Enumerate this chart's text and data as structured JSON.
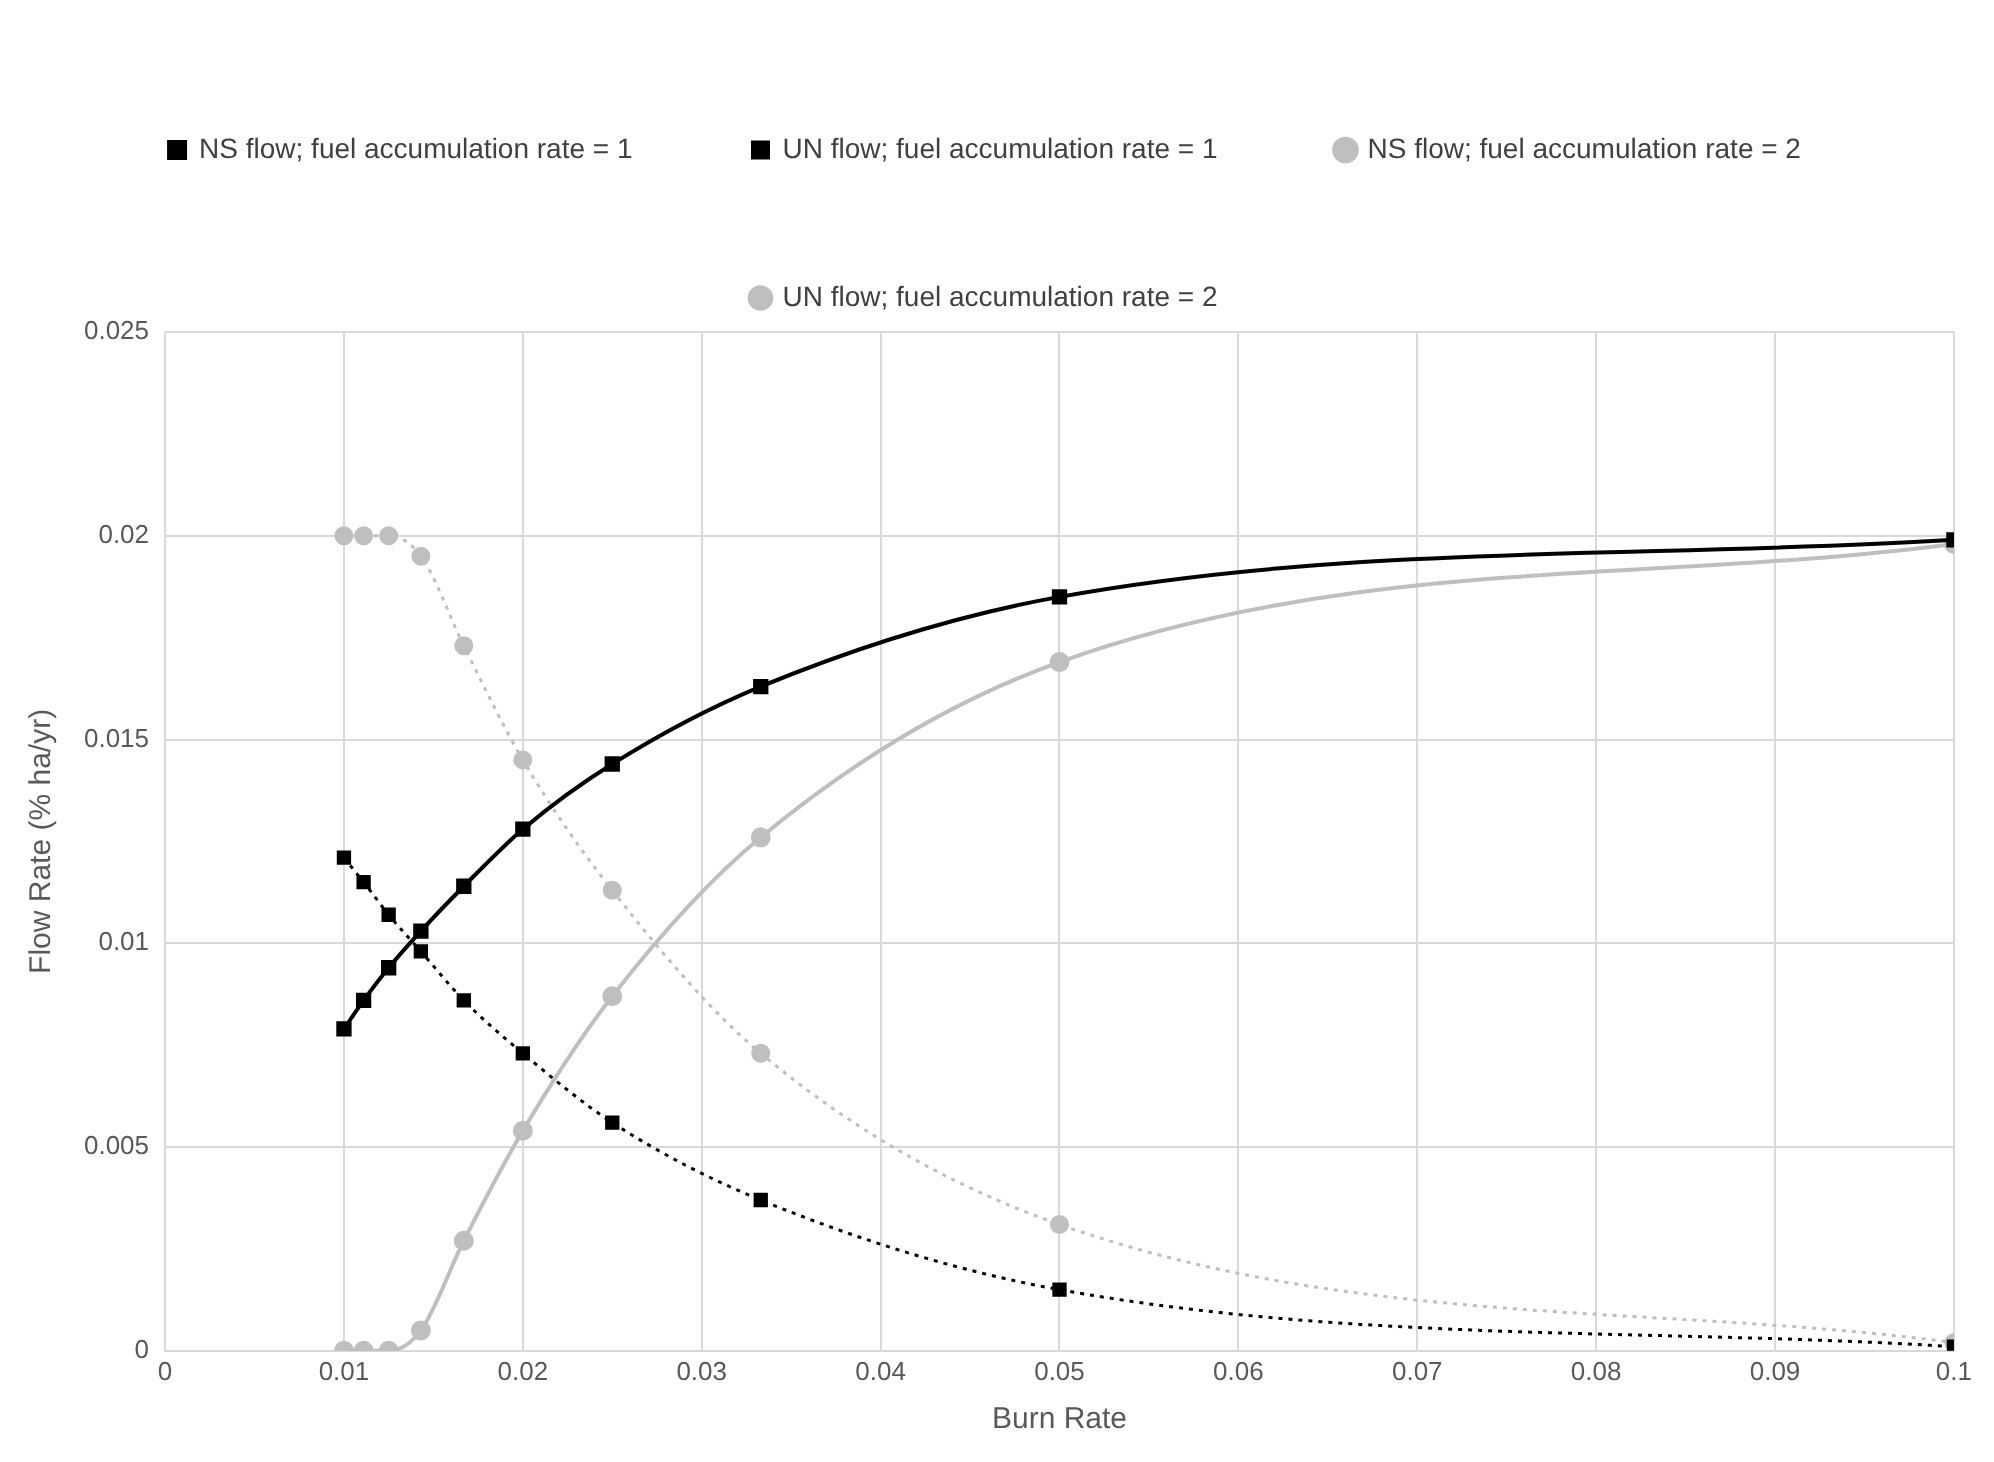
{
  "chart_data": {
    "type": "line",
    "xlabel": "Burn Rate",
    "ylabel": "Flow Rate (% ha/yr)",
    "x": [
      0.01,
      0.0111,
      0.0125,
      0.0143,
      0.0167,
      0.02,
      0.025,
      0.0333,
      0.05,
      0.1
    ],
    "xlim": [
      0,
      0.1
    ],
    "xticks": [
      0,
      0.01,
      0.02,
      0.03,
      0.04,
      0.05,
      0.06,
      0.07,
      0.08,
      0.09,
      0.1
    ],
    "ylim": [
      0,
      0.025
    ],
    "yticks": [
      0,
      0.005,
      0.01,
      0.015,
      0.02,
      0.025
    ],
    "grid": true,
    "legend": "top",
    "series": [
      {
        "name": "NS flow; fuel accumulation rate = 1",
        "color": "#000000",
        "marker": "square",
        "line_style": "solid",
        "values": [
          0.0079,
          0.0086,
          0.0094,
          0.0103,
          0.0114,
          0.0128,
          0.0144,
          0.0163,
          0.0185,
          0.0199
        ]
      },
      {
        "name": "UN flow; fuel accumulation rate = 1",
        "color": "#000000",
        "marker": "square",
        "line_style": "dotted",
        "values": [
          0.0121,
          0.0115,
          0.0107,
          0.0098,
          0.0086,
          0.0073,
          0.0056,
          0.0037,
          0.0015,
          0.0001
        ]
      },
      {
        "name": "NS flow; fuel accumulation rate = 2",
        "color": "#bfbfbf",
        "marker": "circle",
        "line_style": "solid",
        "values": [
          0,
          0,
          0,
          0.0005,
          0.0027,
          0.0054,
          0.0087,
          0.0126,
          0.0169,
          0.0198
        ]
      },
      {
        "name": "UN flow; fuel accumulation rate = 2",
        "color": "#bfbfbf",
        "marker": "circle",
        "line_style": "dotted",
        "values": [
          0.02,
          0.02,
          0.02,
          0.0195,
          0.0173,
          0.0145,
          0.0113,
          0.0073,
          0.0031,
          0.0002
        ]
      }
    ]
  }
}
